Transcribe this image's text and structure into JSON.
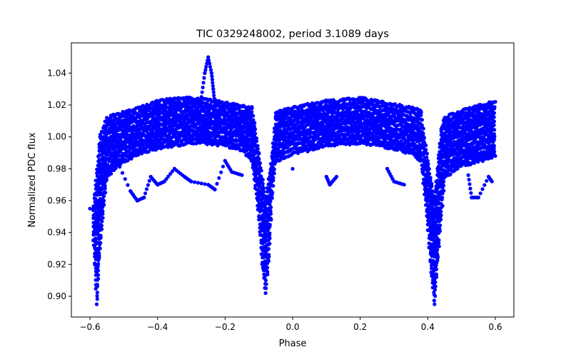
{
  "chart_data": {
    "type": "scatter",
    "title": "TIC 0329248002, period 3.1089 days",
    "xlabel": "Phase",
    "ylabel": "Normalized PDC flux",
    "xlim": [
      -0.655,
      0.655
    ],
    "ylim": [
      0.887,
      1.059
    ],
    "xticks": [
      -0.6,
      -0.4,
      -0.2,
      0.0,
      0.2,
      0.4,
      0.6
    ],
    "xtick_labels": [
      "−0.6",
      "−0.4",
      "−0.2",
      "0.0",
      "0.2",
      "0.4",
      "0.6"
    ],
    "yticks": [
      0.9,
      0.92,
      0.94,
      0.96,
      0.98,
      1.0,
      1.02,
      1.04
    ],
    "ytick_labels": [
      "0.90",
      "0.92",
      "0.94",
      "0.96",
      "0.98",
      "1.00",
      "1.02",
      "1.04"
    ],
    "grid": false,
    "marker_color": "#0000ff",
    "series": [
      {
        "values_description": "upper envelope",
        "points": [
          [
            -0.59,
            0.955
          ],
          [
            -0.57,
            1.0
          ],
          [
            -0.55,
            1.012
          ],
          [
            -0.5,
            1.015
          ],
          [
            -0.45,
            1.018
          ],
          [
            -0.4,
            1.022
          ],
          [
            -0.35,
            1.024
          ],
          [
            -0.3,
            1.024
          ],
          [
            -0.25,
            1.023
          ],
          [
            -0.2,
            1.021
          ],
          [
            -0.15,
            1.019
          ],
          [
            -0.12,
            1.018
          ],
          [
            -0.1,
            0.99
          ],
          [
            -0.08,
            0.96
          ],
          [
            -0.06,
            0.99
          ],
          [
            -0.05,
            1.015
          ],
          [
            0.0,
            1.018
          ],
          [
            0.05,
            1.02
          ],
          [
            0.1,
            1.022
          ],
          [
            0.15,
            1.023
          ],
          [
            0.2,
            1.024
          ],
          [
            0.25,
            1.022
          ],
          [
            0.3,
            1.02
          ],
          [
            0.35,
            1.018
          ],
          [
            0.38,
            1.016
          ],
          [
            0.4,
            0.985
          ],
          [
            0.42,
            0.96
          ],
          [
            0.44,
            1.005
          ],
          [
            0.45,
            1.012
          ],
          [
            0.5,
            1.016
          ],
          [
            0.55,
            1.019
          ],
          [
            0.6,
            1.022
          ]
        ]
      },
      {
        "values_description": "lower envelope",
        "points": [
          [
            -0.6,
            0.955
          ],
          [
            -0.59,
            0.935
          ],
          [
            -0.58,
            0.895
          ],
          [
            -0.57,
            0.93
          ],
          [
            -0.55,
            0.975
          ],
          [
            -0.5,
            0.985
          ],
          [
            -0.45,
            0.99
          ],
          [
            -0.4,
            0.993
          ],
          [
            -0.35,
            0.995
          ],
          [
            -0.3,
            0.996
          ],
          [
            -0.25,
            0.996
          ],
          [
            -0.2,
            0.995
          ],
          [
            -0.15,
            0.992
          ],
          [
            -0.12,
            0.985
          ],
          [
            -0.1,
            0.95
          ],
          [
            -0.09,
            0.92
          ],
          [
            -0.08,
            0.902
          ],
          [
            -0.07,
            0.925
          ],
          [
            -0.06,
            0.965
          ],
          [
            -0.05,
            0.985
          ],
          [
            0.0,
            0.99
          ],
          [
            0.05,
            0.992
          ],
          [
            0.1,
            0.995
          ],
          [
            0.15,
            0.996
          ],
          [
            0.2,
            0.996
          ],
          [
            0.25,
            0.995
          ],
          [
            0.3,
            0.993
          ],
          [
            0.35,
            0.99
          ],
          [
            0.38,
            0.985
          ],
          [
            0.4,
            0.945
          ],
          [
            0.41,
            0.915
          ],
          [
            0.42,
            0.895
          ],
          [
            0.43,
            0.925
          ],
          [
            0.45,
            0.975
          ],
          [
            0.5,
            0.982
          ],
          [
            0.55,
            0.985
          ],
          [
            0.6,
            0.988
          ]
        ]
      },
      {
        "values_description": "flare near phase -0.25",
        "points": [
          [
            -0.28,
            1.01
          ],
          [
            -0.27,
            1.025
          ],
          [
            -0.26,
            1.04
          ],
          [
            -0.25,
            1.05
          ],
          [
            -0.24,
            1.04
          ],
          [
            -0.235,
            1.03
          ],
          [
            -0.23,
            1.02
          ]
        ]
      },
      {
        "values_description": "dip features",
        "points": [
          [
            -0.52,
            0.985
          ],
          [
            -0.48,
            0.966
          ],
          [
            -0.46,
            0.96
          ],
          [
            -0.44,
            0.962
          ],
          [
            -0.42,
            0.975
          ],
          [
            -0.4,
            0.97
          ],
          [
            -0.38,
            0.972
          ],
          [
            -0.35,
            0.98
          ],
          [
            -0.32,
            0.975
          ],
          [
            -0.3,
            0.972
          ],
          [
            -0.25,
            0.97
          ],
          [
            -0.23,
            0.967
          ],
          [
            -0.2,
            0.985
          ],
          [
            -0.18,
            0.978
          ],
          [
            -0.15,
            0.976
          ],
          [
            0.0,
            0.98
          ],
          [
            0.1,
            0.975
          ],
          [
            0.11,
            0.97
          ],
          [
            0.13,
            0.975
          ],
          [
            0.28,
            0.98
          ],
          [
            0.3,
            0.972
          ],
          [
            0.33,
            0.97
          ],
          [
            0.52,
            0.976
          ],
          [
            0.53,
            0.962
          ],
          [
            0.55,
            0.962
          ],
          [
            0.58,
            0.975
          ],
          [
            0.59,
            0.972
          ]
        ]
      }
    ]
  }
}
